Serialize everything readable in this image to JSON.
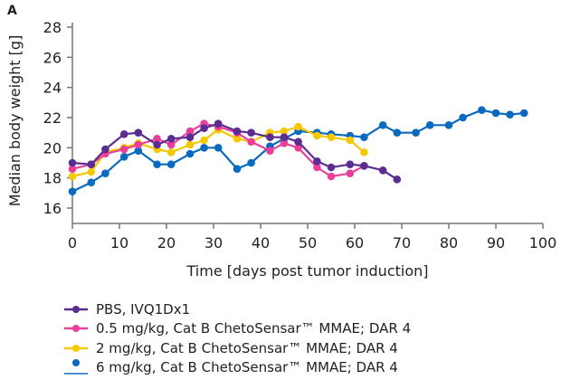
{
  "chart_data": {
    "type": "line",
    "panel_label": "A",
    "xlabel": "Time [days post tumor induction]",
    "ylabel": "Median body weight [g]",
    "xlim": [
      0,
      100
    ],
    "ylim": [
      15,
      28
    ],
    "xticks": [
      0,
      10,
      20,
      30,
      40,
      50,
      60,
      70,
      80,
      90,
      100
    ],
    "yticks": [
      16,
      18,
      20,
      22,
      24,
      26,
      28
    ],
    "grid": false,
    "legend_position": "bottom",
    "series": [
      {
        "name": "PBS, IVQ1Dx1",
        "color": "#5b2d90",
        "x": [
          0,
          4,
          7,
          11,
          14,
          18,
          21,
          25,
          28,
          31,
          35,
          38,
          42,
          45,
          48,
          52,
          55,
          59,
          62,
          66,
          69
        ],
        "y": [
          19.0,
          18.9,
          19.9,
          20.9,
          21.0,
          20.2,
          20.6,
          20.7,
          21.3,
          21.6,
          21.1,
          21.0,
          20.7,
          20.7,
          20.4,
          19.1,
          18.7,
          18.9,
          18.8,
          18.5,
          17.9
        ]
      },
      {
        "name": "0.5 mg/kg, Cat B ChetoSensar™ MMAE; DAR 4",
        "color": "#e8409a",
        "x": [
          0,
          4,
          7,
          11,
          14,
          18,
          21,
          25,
          28,
          31,
          35,
          38,
          42,
          45,
          48,
          52,
          55,
          59,
          62
        ],
        "y": [
          18.6,
          18.9,
          19.6,
          19.9,
          20.2,
          20.6,
          20.2,
          21.1,
          21.6,
          21.4,
          21.0,
          20.4,
          19.8,
          20.3,
          20.0,
          18.7,
          18.1,
          18.3,
          18.8
        ]
      },
      {
        "name": "2 mg/kg, Cat B ChetoSensar™ MMAE; DAR 4",
        "color": "#f5c800",
        "x": [
          0,
          4,
          7,
          11,
          14,
          18,
          21,
          25,
          28,
          31,
          35,
          38,
          42,
          45,
          48,
          52,
          55,
          59,
          62
        ],
        "y": [
          18.1,
          18.4,
          19.7,
          20.0,
          20.3,
          19.9,
          19.7,
          20.2,
          20.5,
          21.2,
          20.6,
          20.4,
          21.0,
          21.1,
          21.4,
          20.8,
          20.7,
          20.5,
          19.7
        ]
      },
      {
        "name": "6 mg/kg, Cat B ChetoSensar™ MMAE; DAR 4",
        "color": "#0a6abf",
        "x": [
          0,
          4,
          7,
          11,
          14,
          18,
          21,
          25,
          28,
          31,
          35,
          38,
          42,
          45,
          48,
          52,
          55,
          59,
          62,
          66,
          69,
          73,
          76,
          80,
          83,
          87,
          90,
          93,
          96
        ],
        "y": [
          17.1,
          17.7,
          18.3,
          19.4,
          19.8,
          18.9,
          18.9,
          19.6,
          20.0,
          20.0,
          18.6,
          19.0,
          20.1,
          20.6,
          21.1,
          21.0,
          20.9,
          20.8,
          20.7,
          21.5,
          21.0,
          21.0,
          21.5,
          21.5,
          22.0,
          22.5,
          22.3,
          22.2,
          22.3
        ]
      }
    ]
  }
}
